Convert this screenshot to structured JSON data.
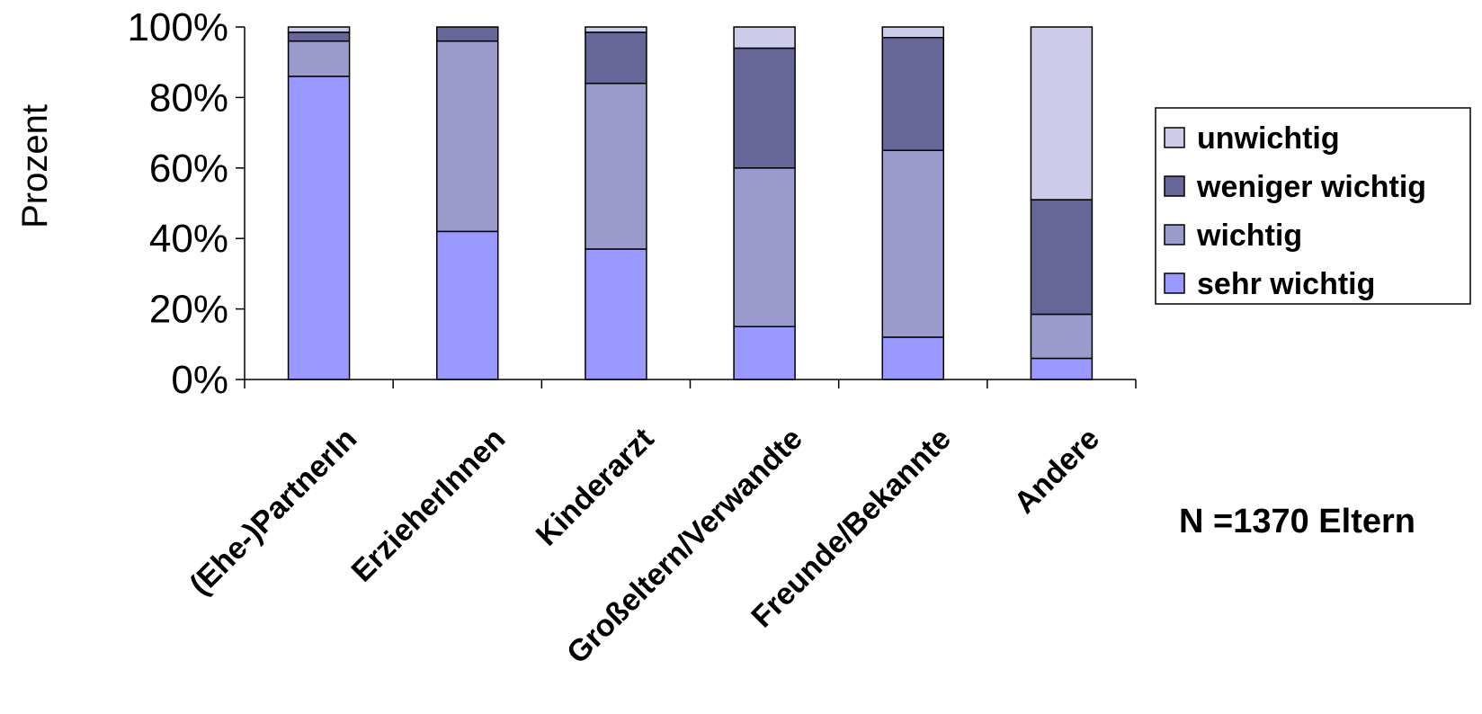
{
  "chart_data": {
    "type": "bar",
    "stacked": true,
    "ylabel": "Prozent",
    "xlabel": "",
    "ylim": [
      0,
      100
    ],
    "yticks": [
      "0%",
      "20%",
      "40%",
      "60%",
      "80%",
      "100%"
    ],
    "grid": false,
    "legend_position": "right",
    "categories": [
      "(Ehe-)PartnerIn",
      "ErzieherInnen",
      "Kinderarzt",
      "Großeltern/Verwandte",
      "Freunde/Bekannte",
      "Andere"
    ],
    "series": [
      {
        "name": "sehr wichtig",
        "color": "#9999ff",
        "values": [
          86,
          42,
          37,
          15,
          12,
          6
        ]
      },
      {
        "name": "wichtig",
        "color": "#9a9acc",
        "values": [
          10,
          54,
          47,
          45,
          53,
          12.5
        ]
      },
      {
        "name": "weniger wichtig",
        "color": "#666699",
        "values": [
          2.5,
          4,
          14.5,
          34,
          32,
          32.5
        ]
      },
      {
        "name": "unwichtig",
        "color": "#ccccea",
        "values": [
          1.5,
          0,
          1.5,
          6,
          3,
          49
        ]
      }
    ],
    "annotation": "N =1370 Eltern"
  }
}
